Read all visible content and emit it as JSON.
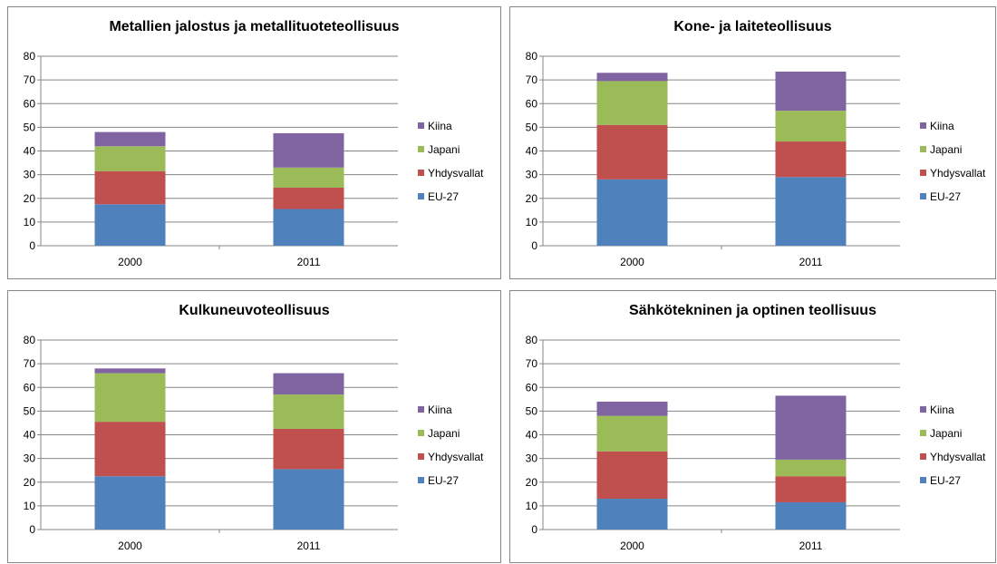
{
  "chart_data": [
    {
      "type": "bar",
      "stacked": true,
      "title": "Metallien jalostus ja metallituoteteollisuus",
      "categories": [
        "2000",
        "2011"
      ],
      "ylim": [
        0,
        80
      ],
      "yticks": [
        "0",
        "10",
        "20",
        "30",
        "40",
        "50",
        "60",
        "70",
        "80"
      ],
      "grid": true,
      "legend_position": "right",
      "series": [
        {
          "name": "EU-27",
          "color": "#4f81bd",
          "values": [
            17.5,
            15.5
          ]
        },
        {
          "name": "Yhdysvallat",
          "color": "#c0504d",
          "values": [
            14.0,
            9.0
          ]
        },
        {
          "name": "Japani",
          "color": "#9bbb59",
          "values": [
            10.5,
            8.5
          ]
        },
        {
          "name": "Kiina",
          "color": "#8064a2",
          "values": [
            6.0,
            14.5
          ]
        }
      ]
    },
    {
      "type": "bar",
      "stacked": true,
      "title": "Kone- ja laiteteollisuus",
      "categories": [
        "2000",
        "2011"
      ],
      "ylim": [
        0,
        80
      ],
      "yticks": [
        "0",
        "10",
        "20",
        "30",
        "40",
        "50",
        "60",
        "70",
        "80"
      ],
      "grid": true,
      "legend_position": "right",
      "series": [
        {
          "name": "EU-27",
          "color": "#4f81bd",
          "values": [
            28.0,
            29.0
          ]
        },
        {
          "name": "Yhdysvallat",
          "color": "#c0504d",
          "values": [
            23.0,
            15.0
          ]
        },
        {
          "name": "Japani",
          "color": "#9bbb59",
          "values": [
            18.5,
            13.0
          ]
        },
        {
          "name": "Kiina",
          "color": "#8064a2",
          "values": [
            3.5,
            16.5
          ]
        }
      ]
    },
    {
      "type": "bar",
      "stacked": true,
      "title": "Kulkuneuvoteollisuus",
      "categories": [
        "2000",
        "2011"
      ],
      "ylim": [
        0,
        80
      ],
      "yticks": [
        "0",
        "10",
        "20",
        "30",
        "40",
        "50",
        "60",
        "70",
        "80"
      ],
      "grid": true,
      "legend_position": "right",
      "series": [
        {
          "name": "EU-27",
          "color": "#4f81bd",
          "values": [
            22.5,
            25.5
          ]
        },
        {
          "name": "Yhdysvallat",
          "color": "#c0504d",
          "values": [
            23.0,
            17.0
          ]
        },
        {
          "name": "Japani",
          "color": "#9bbb59",
          "values": [
            20.5,
            14.5
          ]
        },
        {
          "name": "Kiina",
          "color": "#8064a2",
          "values": [
            2.0,
            9.0
          ]
        }
      ]
    },
    {
      "type": "bar",
      "stacked": true,
      "title": "Sähkötekninen ja optinen teollisuus",
      "categories": [
        "2000",
        "2011"
      ],
      "ylim": [
        0,
        80
      ],
      "yticks": [
        "0",
        "10",
        "20",
        "30",
        "40",
        "50",
        "60",
        "70",
        "80"
      ],
      "grid": true,
      "legend_position": "right",
      "series": [
        {
          "name": "EU-27",
          "color": "#4f81bd",
          "values": [
            13.0,
            11.5
          ]
        },
        {
          "name": "Yhdysvallat",
          "color": "#c0504d",
          "values": [
            20.0,
            11.0
          ]
        },
        {
          "name": "Japani",
          "color": "#9bbb59",
          "values": [
            15.0,
            7.0
          ]
        },
        {
          "name": "Kiina",
          "color": "#8064a2",
          "values": [
            6.0,
            27.0
          ]
        }
      ]
    }
  ]
}
